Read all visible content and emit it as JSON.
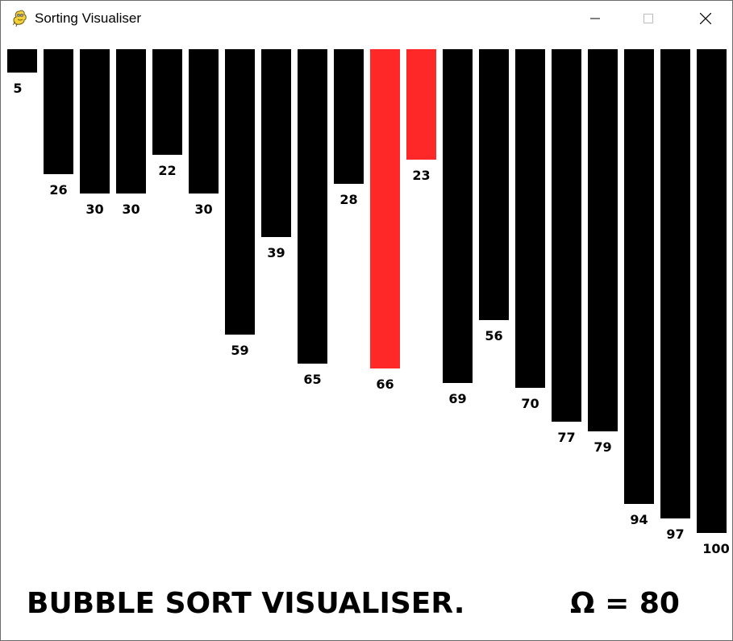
{
  "window": {
    "title": "Sorting Visualiser",
    "icon": "pygame-snake-icon",
    "controls": [
      "minimize-icon",
      "maximize-icon",
      "close-icon"
    ]
  },
  "visualiser": {
    "colors": {
      "bar": "#000000",
      "active": "#ff2828",
      "background": "#ffffff"
    },
    "max_value": 100,
    "bars": [
      {
        "value": 5,
        "label": "5",
        "active": false
      },
      {
        "value": 26,
        "label": "26",
        "active": false
      },
      {
        "value": 30,
        "label": "30",
        "active": false
      },
      {
        "value": 30,
        "label": "30",
        "active": false
      },
      {
        "value": 22,
        "label": "22",
        "active": false
      },
      {
        "value": 30,
        "label": "30",
        "active": false
      },
      {
        "value": 59,
        "label": "59",
        "active": false
      },
      {
        "value": 39,
        "label": "39",
        "active": false
      },
      {
        "value": 65,
        "label": "65",
        "active": false
      },
      {
        "value": 28,
        "label": "28",
        "active": false
      },
      {
        "value": 66,
        "label": "66",
        "active": true
      },
      {
        "value": 23,
        "label": "23",
        "active": true
      },
      {
        "value": 69,
        "label": "69",
        "active": false
      },
      {
        "value": 56,
        "label": "56",
        "active": false
      },
      {
        "value": 70,
        "label": "70",
        "active": false
      },
      {
        "value": 77,
        "label": "77",
        "active": false
      },
      {
        "value": 79,
        "label": "79",
        "active": false
      },
      {
        "value": 94,
        "label": "94",
        "active": false
      },
      {
        "value": 97,
        "label": "97",
        "active": false
      },
      {
        "value": 100,
        "label": "100",
        "active": false
      }
    ]
  },
  "footer": {
    "title": "BUBBLE SORT VISUALISER.",
    "omega": "Ω = 80"
  }
}
